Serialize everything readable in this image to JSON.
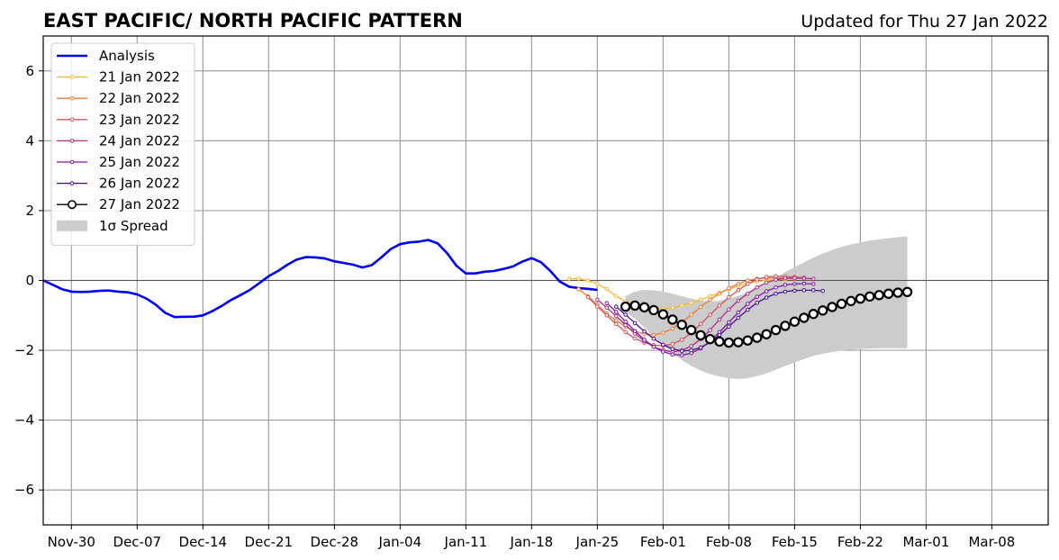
{
  "title_left": "EAST PACIFIC/ NORTH PACIFIC PATTERN",
  "title_right": "Updated for Thu 27 Jan 2022",
  "chart_data": {
    "type": "line",
    "xlabel": "",
    "ylabel": "",
    "x_start": "2021-11-27",
    "xlim": [
      "2021-11-27",
      "2022-03-14"
    ],
    "ylim": [
      -7,
      7
    ],
    "grid": true,
    "legend_position": "upper-left",
    "x_ticks": [
      {
        "date": "2021-11-30",
        "label": "Nov-30"
      },
      {
        "date": "2021-12-07",
        "label": "Dec-07"
      },
      {
        "date": "2021-12-14",
        "label": "Dec-14"
      },
      {
        "date": "2021-12-21",
        "label": "Dec-21"
      },
      {
        "date": "2021-12-28",
        "label": "Dec-28"
      },
      {
        "date": "2022-01-04",
        "label": "Jan-04"
      },
      {
        "date": "2022-01-11",
        "label": "Jan-11"
      },
      {
        "date": "2022-01-18",
        "label": "Jan-18"
      },
      {
        "date": "2022-01-25",
        "label": "Jan-25"
      },
      {
        "date": "2022-02-01",
        "label": "Feb-01"
      },
      {
        "date": "2022-02-08",
        "label": "Feb-08"
      },
      {
        "date": "2022-02-15",
        "label": "Feb-15"
      },
      {
        "date": "2022-02-22",
        "label": "Feb-22"
      },
      {
        "date": "2022-03-01",
        "label": "Mar-01"
      },
      {
        "date": "2022-03-08",
        "label": "Mar-08"
      }
    ],
    "y_ticks": [
      {
        "value": 6,
        "label": "6"
      },
      {
        "value": 4,
        "label": "4"
      },
      {
        "value": 2,
        "label": "2"
      },
      {
        "value": 0,
        "label": "0"
      },
      {
        "value": -2,
        "label": "−2"
      },
      {
        "value": -4,
        "label": "−4"
      },
      {
        "value": -6,
        "label": "−6"
      }
    ],
    "series": [
      {
        "name": "Analysis",
        "color": "#0000ee",
        "style": "analysis",
        "start": "2021-11-27",
        "values": [
          0.0,
          -0.12,
          -0.25,
          -0.32,
          -0.33,
          -0.32,
          -0.3,
          -0.29,
          -0.32,
          -0.34,
          -0.4,
          -0.52,
          -0.7,
          -0.93,
          -1.05,
          -1.04,
          -1.04,
          -1.0,
          -0.88,
          -0.73,
          -0.56,
          -0.42,
          -0.27,
          -0.08,
          0.12,
          0.27,
          0.45,
          0.6,
          0.67,
          0.66,
          0.63,
          0.55,
          0.5,
          0.45,
          0.37,
          0.44,
          0.66,
          0.9,
          1.04,
          1.09,
          1.11,
          1.16,
          1.06,
          0.78,
          0.42,
          0.2,
          0.2,
          0.25,
          0.27,
          0.33,
          0.4,
          0.54,
          0.64,
          0.52,
          0.27,
          -0.03,
          -0.18,
          -0.22,
          -0.24,
          -0.27
        ]
      },
      {
        "name": "21 Jan 2022",
        "color": "#f7b733",
        "style": "forecast",
        "start": "2022-01-22",
        "values": [
          0.05,
          0.05,
          0.0,
          -0.1,
          -0.25,
          -0.45,
          -0.6,
          -0.72,
          -0.8,
          -0.83,
          -0.82,
          -0.78,
          -0.72,
          -0.64,
          -0.55,
          -0.45,
          -0.35,
          -0.25,
          -0.16,
          -0.08,
          -0.03,
          0.0,
          0.02,
          0.03
        ]
      },
      {
        "name": "22 Jan 2022",
        "color": "#ee7b3a",
        "style": "forecast",
        "start": "2022-01-23",
        "values": [
          -0.25,
          -0.45,
          -0.7,
          -0.95,
          -1.15,
          -1.32,
          -1.45,
          -1.54,
          -1.56,
          -1.5,
          -1.38,
          -1.2,
          -0.98,
          -0.76,
          -0.55,
          -0.38,
          -0.22,
          -0.1,
          0.0,
          0.05,
          0.07,
          0.07,
          0.06,
          0.05
        ]
      },
      {
        "name": "23 Jan 2022",
        "color": "#d6535e",
        "style": "forecast",
        "start": "2022-01-24",
        "values": [
          -0.48,
          -0.75,
          -1.0,
          -1.25,
          -1.48,
          -1.66,
          -1.78,
          -1.85,
          -1.87,
          -1.82,
          -1.7,
          -1.5,
          -1.25,
          -0.98,
          -0.72,
          -0.48,
          -0.28,
          -0.1,
          0.03,
          0.1,
          0.12,
          0.11,
          0.1,
          0.08
        ]
      },
      {
        "name": "24 Jan 2022",
        "color": "#ad2d8a",
        "style": "forecast",
        "start": "2022-01-25",
        "values": [
          -0.55,
          -0.78,
          -1.02,
          -1.28,
          -1.52,
          -1.74,
          -1.9,
          -2.0,
          -2.05,
          -2.0,
          -1.88,
          -1.68,
          -1.42,
          -1.12,
          -0.83,
          -0.58,
          -0.38,
          -0.2,
          -0.06,
          0.02,
          0.06,
          0.07,
          0.06,
          0.05
        ]
      },
      {
        "name": "25 Jan 2022",
        "color": "#8414a6",
        "style": "forecast",
        "start": "2022-01-26",
        "values": [
          -0.65,
          -0.9,
          -1.18,
          -1.45,
          -1.7,
          -1.9,
          -2.04,
          -2.12,
          -2.14,
          -2.08,
          -1.95,
          -1.74,
          -1.48,
          -1.2,
          -0.92,
          -0.67,
          -0.47,
          -0.31,
          -0.2,
          -0.13,
          -0.1,
          -0.09,
          -0.1
        ]
      },
      {
        "name": "26 Jan 2022",
        "color": "#4a0b94",
        "style": "forecast",
        "start": "2022-01-27",
        "values": [
          -0.75,
          -0.98,
          -1.22,
          -1.46,
          -1.67,
          -1.84,
          -1.96,
          -2.02,
          -2.0,
          -1.92,
          -1.77,
          -1.56,
          -1.32,
          -1.07,
          -0.84,
          -0.64,
          -0.49,
          -0.38,
          -0.32,
          -0.29,
          -0.28,
          -0.28,
          -0.3
        ]
      },
      {
        "name": "27 Jan 2022",
        "color": "#000000",
        "style": "current",
        "start": "2022-01-28",
        "values": [
          -0.75,
          -0.72,
          -0.77,
          -0.85,
          -0.97,
          -1.12,
          -1.27,
          -1.42,
          -1.57,
          -1.68,
          -1.75,
          -1.78,
          -1.77,
          -1.72,
          -1.64,
          -1.54,
          -1.42,
          -1.3,
          -1.18,
          -1.07,
          -0.96,
          -0.86,
          -0.76,
          -0.67,
          -0.59,
          -0.52,
          -0.46,
          -0.42,
          -0.38,
          -0.35,
          -0.33
        ]
      }
    ],
    "spread": {
      "name": "1σ Spread",
      "color": "#cccccc",
      "start": "2022-01-28",
      "upper": [
        -0.45,
        -0.32,
        -0.27,
        -0.28,
        -0.32,
        -0.38,
        -0.45,
        -0.52,
        -0.58,
        -0.6,
        -0.58,
        -0.52,
        -0.44,
        -0.34,
        -0.22,
        -0.08,
        0.08,
        0.24,
        0.38,
        0.52,
        0.65,
        0.77,
        0.87,
        0.96,
        1.03,
        1.09,
        1.14,
        1.18,
        1.21,
        1.24,
        1.26
      ],
      "lower": [
        -0.9,
        -1.1,
        -1.35,
        -1.6,
        -1.85,
        -2.08,
        -2.28,
        -2.45,
        -2.58,
        -2.68,
        -2.75,
        -2.8,
        -2.82,
        -2.8,
        -2.74,
        -2.66,
        -2.56,
        -2.45,
        -2.35,
        -2.25,
        -2.16,
        -2.1,
        -2.05,
        -2.01,
        -1.98,
        -1.96,
        -1.95,
        -1.94,
        -1.94,
        -1.94,
        -1.94
      ]
    }
  }
}
